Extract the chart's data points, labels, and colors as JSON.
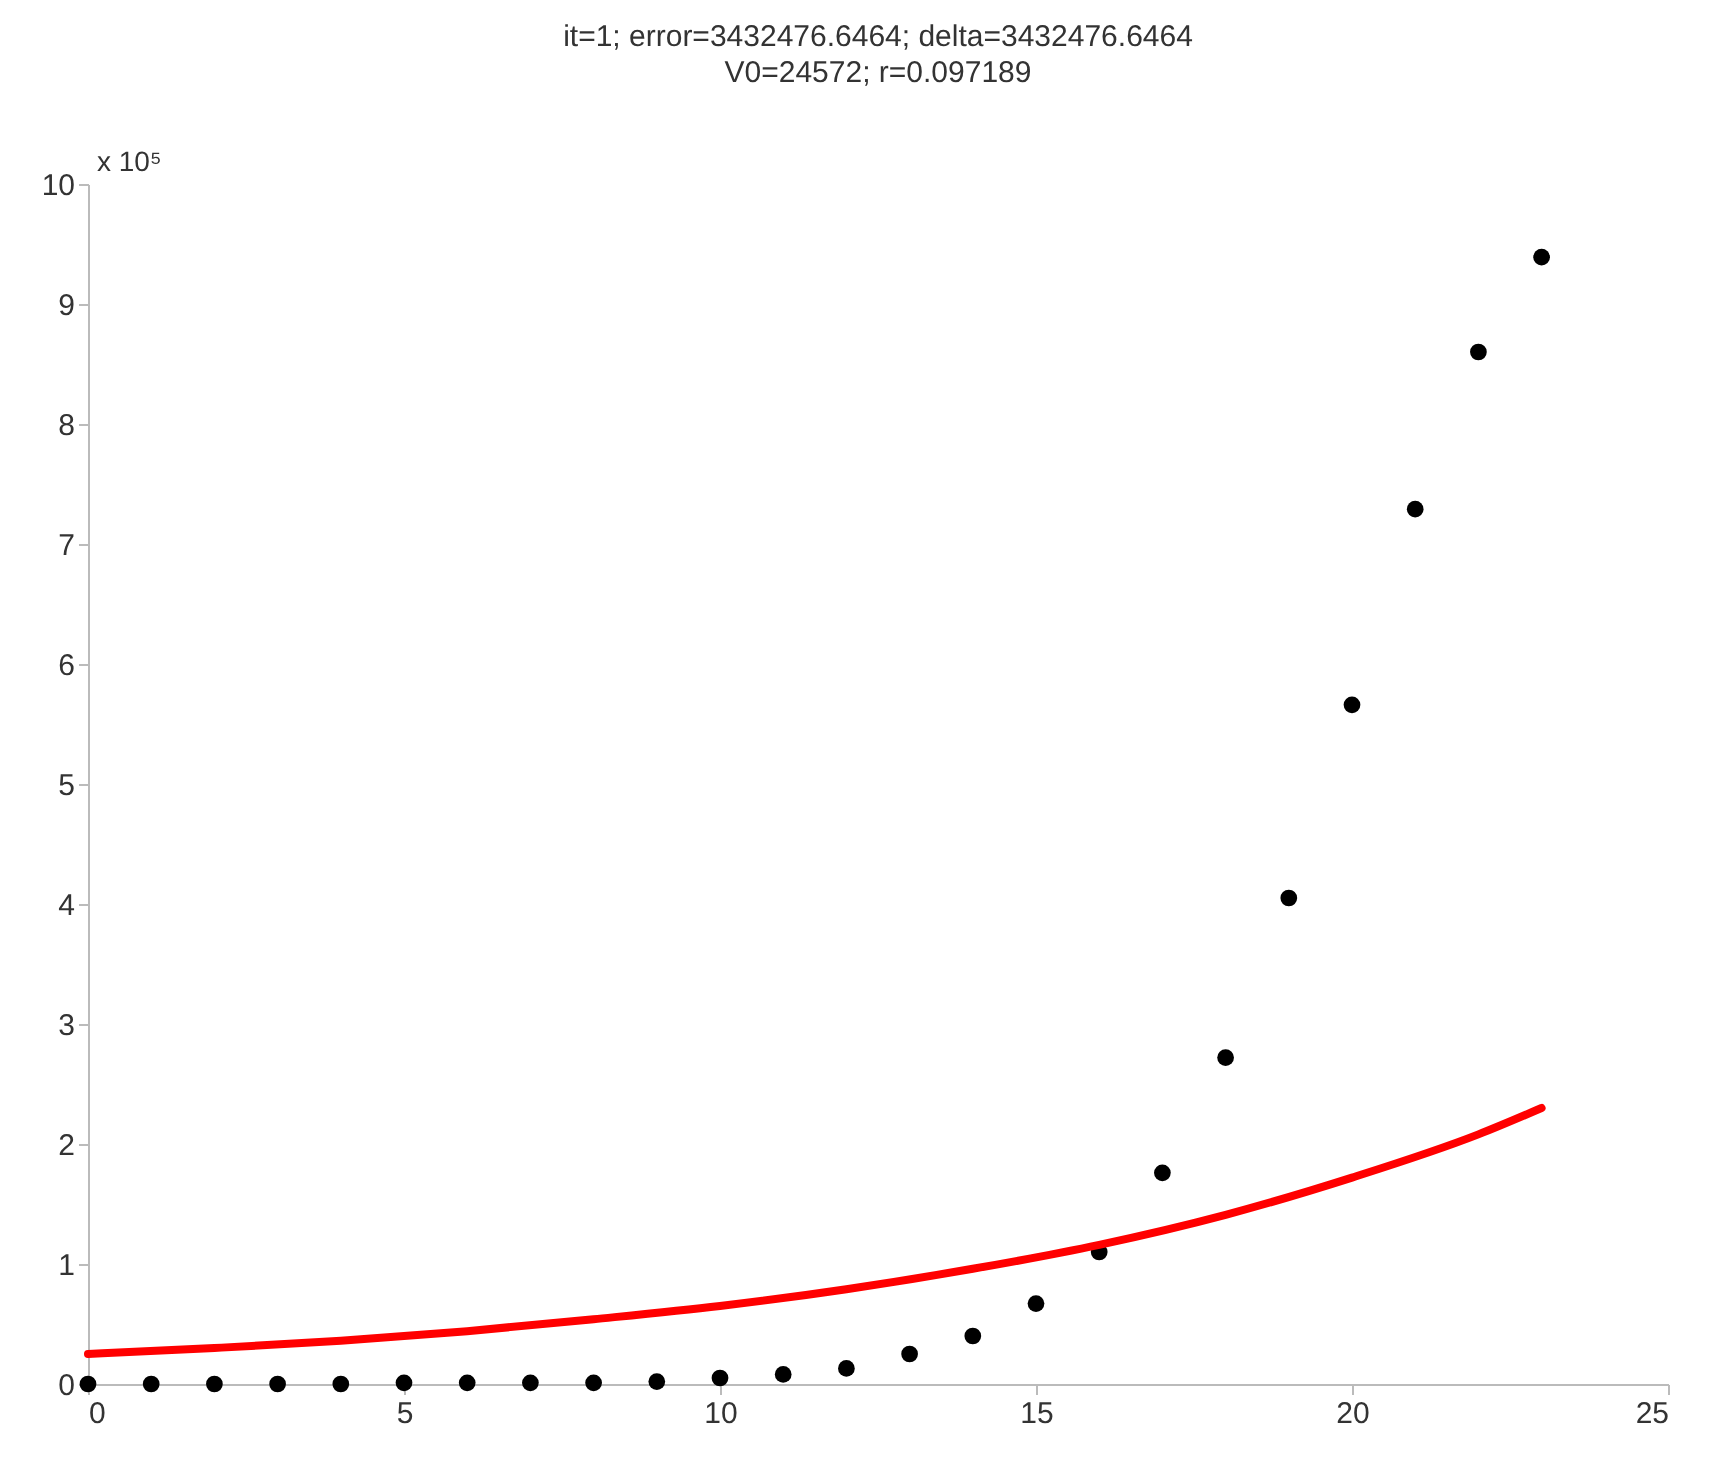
{
  "chart_data": {
    "type": "scatter",
    "title": "it=1; error=3432476.6464; delta=3432476.6464",
    "subtitle": "V0=24572; r=0.097189",
    "annotations": [
      "x 10⁵"
    ],
    "series": [
      {
        "color": "#000000",
        "marker": "circle",
        "x": [
          0,
          1,
          2,
          3,
          4,
          5,
          6,
          7,
          8,
          9,
          10,
          11,
          12,
          13,
          14,
          15,
          16,
          17,
          18,
          19,
          20,
          21,
          22,
          23
        ],
        "values": [
          0,
          0,
          0,
          0,
          0,
          0.01,
          0.01,
          0.01,
          0.01,
          0.02,
          0.05,
          0.08,
          0.13,
          0.25,
          0.4,
          0.67,
          1.1,
          1.76,
          2.72,
          4.05,
          5.66,
          7.29,
          8.6,
          9.39
        ]
      },
      {
        "type": "line",
        "color": "#ff0000",
        "marker": "none",
        "x": [
          0,
          2,
          4,
          6,
          8,
          10,
          12,
          14,
          16,
          18,
          20,
          22,
          23
        ],
        "values": [
          0.25,
          0.3,
          0.36,
          0.44,
          0.54,
          0.65,
          0.79,
          0.96,
          1.16,
          1.41,
          1.72,
          2.08,
          2.3
        ]
      }
    ],
    "xlim": [
      0,
      25
    ],
    "xticks": [
      0,
      5,
      10,
      15,
      20,
      25
    ],
    "ylim": [
      0,
      10
    ],
    "yticks": [
      0,
      1,
      2,
      3,
      4,
      5,
      6,
      7,
      8,
      9,
      10
    ]
  }
}
